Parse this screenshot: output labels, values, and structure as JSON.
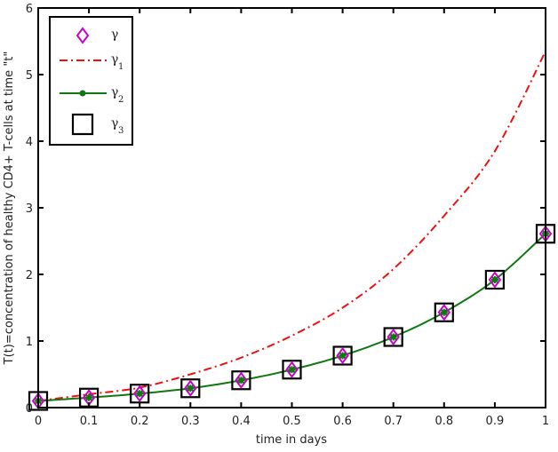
{
  "chart_data": {
    "type": "line",
    "title": "",
    "xlabel": "time in days",
    "ylabel": "T(t)=concentration of healthy CD4+ T-cells at time \"t\"",
    "xlim": [
      0,
      1
    ],
    "ylim": [
      0,
      6
    ],
    "grid": false,
    "legend_position": "upper left",
    "x_ticks": [
      "0",
      "0.1",
      "0.2",
      "0.3",
      "0.4",
      "0.5",
      "0.6",
      "0.7",
      "0.8",
      "0.9",
      "1"
    ],
    "y_ticks": [
      "0",
      "1",
      "2",
      "3",
      "4",
      "5",
      "6"
    ],
    "x": [
      0,
      0.1,
      0.2,
      0.3,
      0.4,
      0.5,
      0.6,
      0.7,
      0.8,
      0.9,
      1.0
    ],
    "series": [
      {
        "name": "γ",
        "label_base": "γ",
        "label_sub": "",
        "color": "#cc00cc",
        "style": "diamond markers",
        "values": [
          0.1,
          0.15,
          0.21,
          0.29,
          0.41,
          0.57,
          0.78,
          1.06,
          1.43,
          1.92,
          2.61
        ]
      },
      {
        "name": "γ1",
        "label_base": "γ",
        "label_sub": "1",
        "color": "#ee1111",
        "style": "dash-dot line",
        "values": [
          0.1,
          0.2,
          0.3,
          0.5,
          0.75,
          1.08,
          1.5,
          2.08,
          2.88,
          3.85,
          5.35
        ]
      },
      {
        "name": "γ2",
        "label_base": "γ",
        "label_sub": "2",
        "color": "#117711",
        "style": "solid line with star markers",
        "values": [
          0.1,
          0.15,
          0.21,
          0.29,
          0.41,
          0.57,
          0.78,
          1.06,
          1.43,
          1.92,
          2.61
        ]
      },
      {
        "name": "γ3",
        "label_base": "γ",
        "label_sub": "3",
        "color": "#000000",
        "style": "square markers",
        "values": [
          0.1,
          0.15,
          0.21,
          0.29,
          0.41,
          0.57,
          0.78,
          1.06,
          1.43,
          1.92,
          2.61
        ]
      }
    ]
  }
}
